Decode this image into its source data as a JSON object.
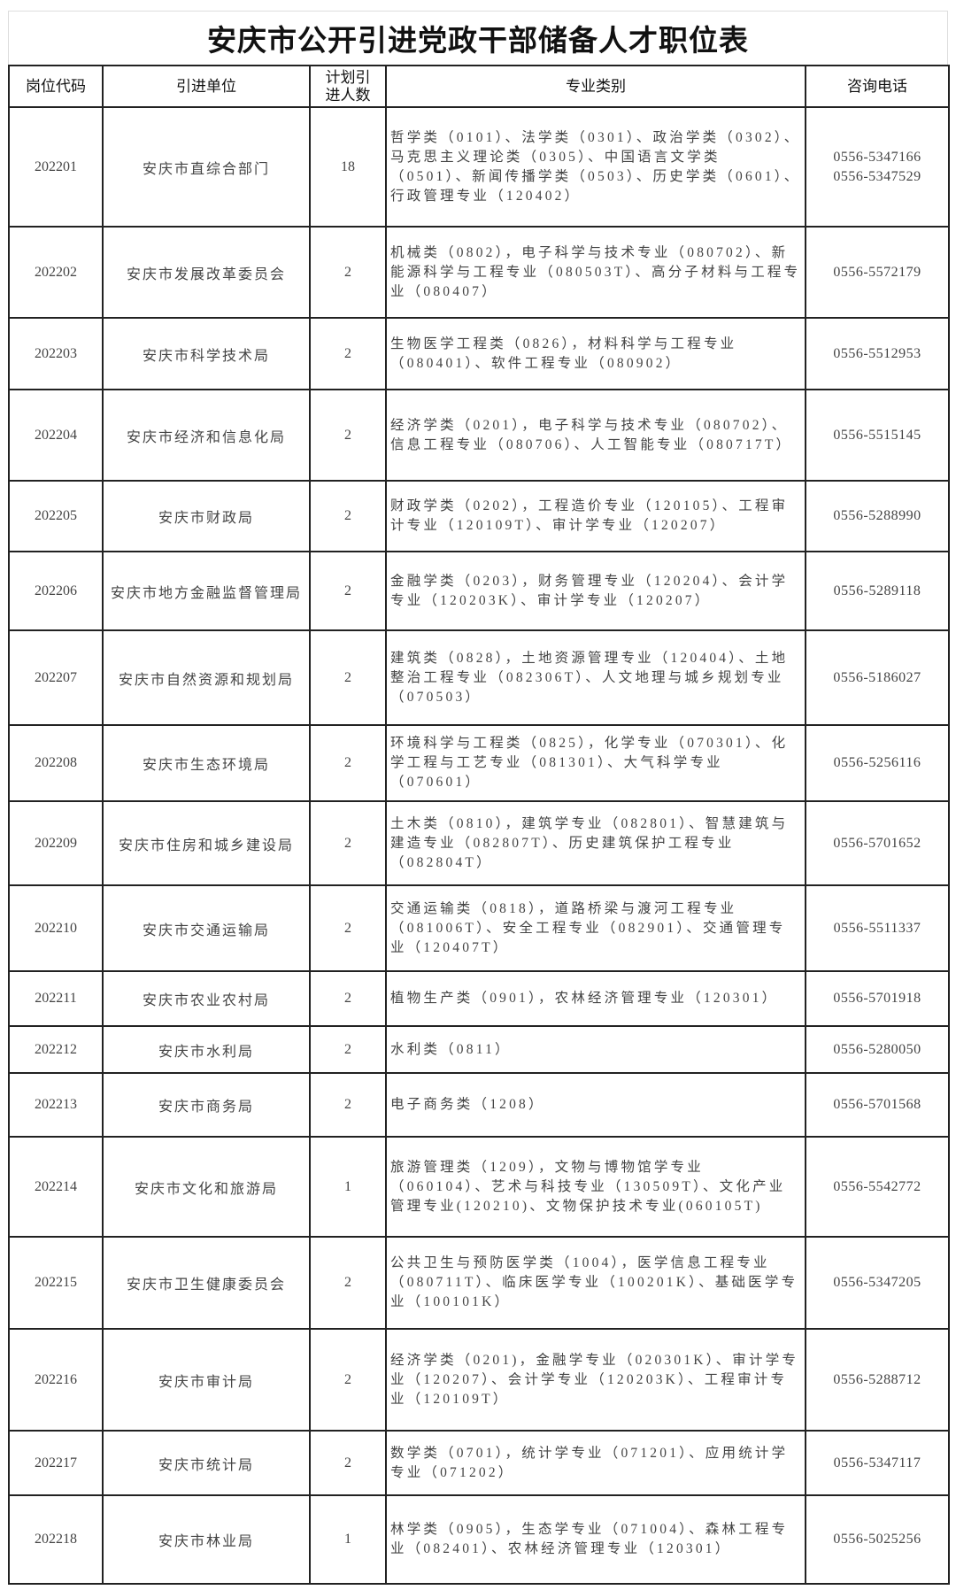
{
  "title": "安庆市公开引进党政干部储备人才职位表",
  "headers": {
    "code": "岗位代码",
    "unit": "引进单位",
    "count_line1": "计划引",
    "count_line2": "进人数",
    "major": "专业类别",
    "phone": "咨询电话"
  },
  "rows": [
    {
      "code": "202201",
      "unit": "安庆市直综合部门",
      "count": "18",
      "major": "哲学类（0101）、法学类（0301）、政治学类（0302）、马克思主义理论类（0305）、中国语言文学类（0501）、新闻传播学类（0503）、历史学类（0601）、行政管理专业（120402）",
      "phones": [
        "0556-5347166",
        "0556-5347529"
      ]
    },
    {
      "code": "202202",
      "unit": "安庆市发展改革委员会",
      "count": "2",
      "major": "机械类（0802），电子科学与技术专业（080702）、新能源科学与工程专业（080503T）、高分子材料与工程专业（080407）",
      "phones": [
        "0556-5572179"
      ]
    },
    {
      "code": "202203",
      "unit": "安庆市科学技术局",
      "count": "2",
      "major": "生物医学工程类（0826），材料科学与工程专业（080401）、软件工程专业（080902）",
      "phones": [
        "0556-5512953"
      ]
    },
    {
      "code": "202204",
      "unit": "安庆市经济和信息化局",
      "count": "2",
      "major": "经济学类（0201），电子科学与技术专业（080702）、信息工程专业（080706）、人工智能专业（080717T）",
      "phones": [
        "0556-5515145"
      ]
    },
    {
      "code": "202205",
      "unit": "安庆市财政局",
      "count": "2",
      "major": "财政学类（0202），工程造价专业（120105）、工程审计专业（120109T）、审计学专业（120207）",
      "phones": [
        "0556-5288990"
      ]
    },
    {
      "code": "202206",
      "unit": "安庆市地方金融监督管理局",
      "count": "2",
      "major": "金融学类（0203），财务管理专业（120204）、会计学专业（120203K）、审计学专业（120207）",
      "phones": [
        "0556-5289118"
      ]
    },
    {
      "code": "202207",
      "unit": "安庆市自然资源和规划局",
      "count": "2",
      "major": "建筑类（0828），土地资源管理专业（120404）、土地整治工程专业（082306T）、人文地理与城乡规划专业（070503）",
      "phones": [
        "0556-5186027"
      ]
    },
    {
      "code": "202208",
      "unit": "安庆市生态环境局",
      "count": "2",
      "major": "环境科学与工程类（0825），化学专业（070301）、化学工程与工艺专业（081301）、大气科学专业（070601）",
      "phones": [
        "0556-5256116"
      ]
    },
    {
      "code": "202209",
      "unit": "安庆市住房和城乡建设局",
      "count": "2",
      "major": "土木类（0810），建筑学专业（082801）、智慧建筑与建造专业（082807T）、历史建筑保护工程专业（082804T）",
      "phones": [
        "0556-5701652"
      ]
    },
    {
      "code": "202210",
      "unit": "安庆市交通运输局",
      "count": "2",
      "major": "交通运输类（0818），道路桥梁与渡河工程专业（081006T）、安全工程专业（082901）、交通管理专业（120407T）",
      "phones": [
        "0556-5511337"
      ]
    },
    {
      "code": "202211",
      "unit": "安庆市农业农村局",
      "count": "2",
      "major": "植物生产类（0901），农林经济管理专业（120301）",
      "phones": [
        "0556-5701918"
      ]
    },
    {
      "code": "202212",
      "unit": "安庆市水利局",
      "count": "2",
      "major": "水利类（0811）",
      "phones": [
        "0556-5280050"
      ]
    },
    {
      "code": "202213",
      "unit": "安庆市商务局",
      "count": "2",
      "major": "电子商务类（1208）",
      "phones": [
        "0556-5701568"
      ]
    },
    {
      "code": "202214",
      "unit": "安庆市文化和旅游局",
      "count": "1",
      "major": "旅游管理类（1209），文物与博物馆学专业（060104）、艺术与科技专业（130509T）、文化产业管理专业(120210)、文物保护技术专业(060105T)",
      "phones": [
        "0556-5542772"
      ]
    },
    {
      "code": "202215",
      "unit": "安庆市卫生健康委员会",
      "count": "2",
      "major": "公共卫生与预防医学类（1004），医学信息工程专业（080711T）、临床医学专业（100201K）、基础医学专业（100101K）",
      "phones": [
        "0556-5347205"
      ]
    },
    {
      "code": "202216",
      "unit": "安庆市审计局",
      "count": "2",
      "major": "经济学类（0201)，金融学专业（020301K）、审计学专业（120207）、会计学专业（120203K）、工程审计专业（120109T）",
      "phones": [
        "0556-5288712"
      ]
    },
    {
      "code": "202217",
      "unit": "安庆市统计局",
      "count": "2",
      "major": "数学类（0701），统计学专业（071201）、应用统计学专业（071202）",
      "phones": [
        "0556-5347117"
      ]
    },
    {
      "code": "202218",
      "unit": "安庆市林业局",
      "count": "1",
      "major": "林学类（0905），生态学专业（071004）、森林工程专业（082401）、农林经济管理专业（120301）",
      "phones": [
        "0556-5025256"
      ]
    }
  ]
}
